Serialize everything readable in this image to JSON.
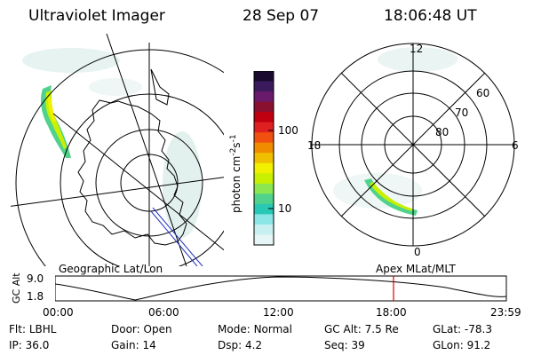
{
  "header": {
    "instrument": "Ultraviolet Imager",
    "date": "28 Sep 07",
    "time": "18:06:48 UT"
  },
  "colorbar": {
    "unit_label": "photon cm",
    "exp1": "-2",
    "mid": "s",
    "exp2": "-1",
    "ticks": [
      "100",
      "10"
    ],
    "colors": [
      "#1a0b2e",
      "#3a1a5c",
      "#6a1a6a",
      "#8a1030",
      "#c00010",
      "#e02020",
      "#f05010",
      "#f08c00",
      "#f0c000",
      "#f0f000",
      "#c8f000",
      "#8ce650",
      "#50d28c",
      "#28c8b4",
      "#8ce6e6",
      "#c8f0f0",
      "#e6f5f5"
    ]
  },
  "left_panel": {
    "label": "Geographic Lat/Lon"
  },
  "right_panel": {
    "label": "Apex  MLat/MLT",
    "mlt_labels": {
      "top": "12",
      "left": "18",
      "right": "6",
      "bottom": "0"
    },
    "lat_labels": [
      "60",
      "70",
      "80"
    ]
  },
  "altitude_plot": {
    "ylabel": "GC Alt",
    "ytick_top": "9.0",
    "ytick_bottom": "1.8",
    "xticks": [
      "00:00",
      "06:00",
      "12:00",
      "18:00",
      "23:59"
    ],
    "marker_color": "#e00000"
  },
  "status": {
    "row1": [
      {
        "label": "Flt:",
        "value": "LBHL"
      },
      {
        "label": "Door:",
        "value": "Open"
      },
      {
        "label": "Mode:",
        "value": "Normal"
      },
      {
        "label": "GC Alt:",
        "value": "7.5 Re"
      },
      {
        "label": "GLat:",
        "value": "-78.3"
      }
    ],
    "row2": [
      {
        "label": "IP:",
        "value": "36.0"
      },
      {
        "label": "Gain:",
        "value": "14"
      },
      {
        "label": "Dsp:",
        "value": "4.2"
      },
      {
        "label": "Seq:",
        "value": "39"
      },
      {
        "label": "GLon:",
        "value": "91.2"
      }
    ]
  }
}
